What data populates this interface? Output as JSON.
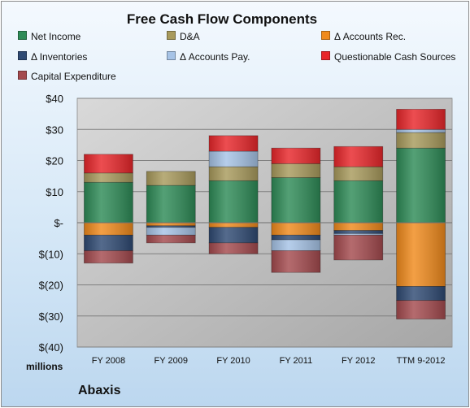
{
  "chart_data": {
    "type": "bar",
    "stacked": true,
    "title": "Free Cash Flow Components",
    "xlabel": "",
    "ylabel": "",
    "units_label": "millions",
    "company": "Abaxis",
    "categories": [
      "FY 2008",
      "FY 2009",
      "FY 2010",
      "FY 2011",
      "FY 2012",
      "TTM 9-2012"
    ],
    "y_ticks": [
      40,
      30,
      20,
      10,
      0,
      -10,
      -20,
      -30,
      -40
    ],
    "y_tick_labels": [
      "$40",
      "$30",
      "$20",
      "$10",
      "$-",
      "$(10)",
      "$(20)",
      "$(30)",
      "$(40)"
    ],
    "ylim": [
      -40,
      40
    ],
    "grid": true,
    "legend_position": "top",
    "series": [
      {
        "name": "Net Income",
        "color": "#2e8b57",
        "values": [
          13,
          12,
          13.5,
          14.5,
          13.5,
          24
        ]
      },
      {
        "name": "D&A",
        "color": "#a89a5c",
        "values": [
          3,
          4.5,
          4.5,
          4.5,
          4.5,
          5
        ]
      },
      {
        "name": "Δ Accounts Rec.",
        "color": "#f08a1c",
        "values": [
          -4,
          -1,
          -1.5,
          -4,
          -2.5,
          -20.5
        ]
      },
      {
        "name": "Δ Inventories",
        "color": "#2f4a73",
        "values": [
          -5,
          -0.5,
          -5,
          -1.5,
          -1,
          -4.5
        ]
      },
      {
        "name": "Δ Accounts Pay.",
        "color": "#a6c3e6",
        "values": [
          0,
          -2.5,
          5,
          -3.5,
          -0.5,
          1
        ]
      },
      {
        "name": "Questionable Cash Sources",
        "color": "#e8262a",
        "values": [
          6,
          0,
          5,
          5,
          6.5,
          6.5
        ]
      },
      {
        "name": "Capital Expenditure",
        "color": "#a44a4e",
        "values": [
          -4,
          -2.5,
          -3.5,
          -7,
          -8,
          -6
        ]
      }
    ]
  }
}
